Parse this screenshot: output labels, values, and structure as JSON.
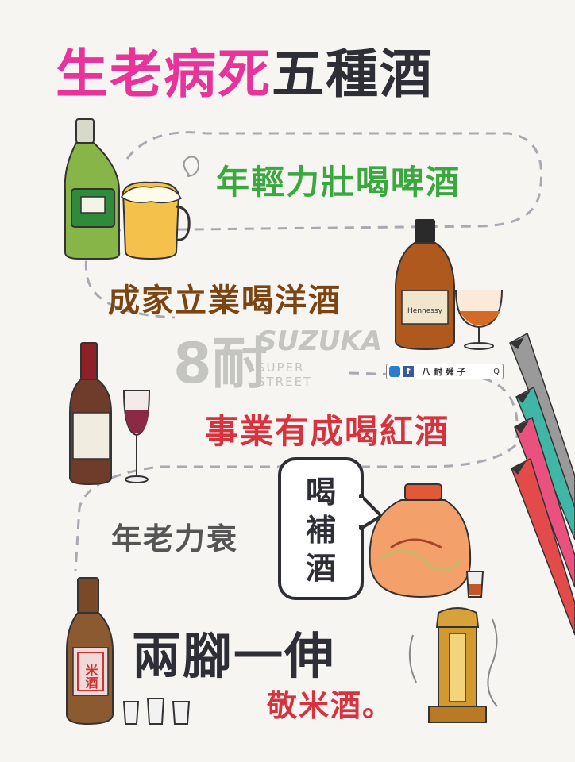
{
  "title": {
    "part1": "生老病死",
    "part2": "五種酒"
  },
  "lines": {
    "beer": "年輕力壯喝啤酒",
    "liquor": "成家立業喝洋酒",
    "wine": "事業有成喝紅酒",
    "old": "年老力衰",
    "tonic": [
      "喝",
      "補",
      "酒"
    ],
    "death": "兩腳一伸",
    "rice": "敬米酒。"
  },
  "badge": {
    "name": "八 耐 舜 子",
    "fb": "f",
    "search": "Q"
  },
  "watermark": {
    "big": "8耐",
    "brand": "SUZUKA",
    "sub": "SUPER STREET"
  },
  "labels": {
    "cognac": "Hennessy",
    "rice_label": "米酒"
  },
  "colors": {
    "pink": "#e8339b",
    "green": "#3aa83f",
    "brown": "#7a4512",
    "red": "#d8323e",
    "dark": "#2e2e36"
  }
}
